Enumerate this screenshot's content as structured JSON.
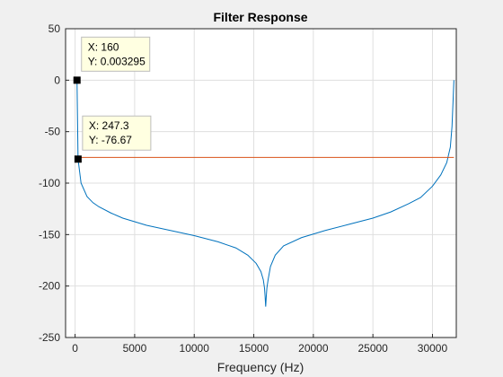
{
  "chart_data": {
    "type": "line",
    "title": "Filter Response",
    "xlabel": "Frequency (Hz)",
    "ylabel": "",
    "xlim": [
      -800,
      32000
    ],
    "ylim": [
      -250,
      50
    ],
    "xticks": [
      0,
      5000,
      10000,
      15000,
      20000,
      25000,
      30000
    ],
    "yticks": [
      50,
      0,
      -50,
      -100,
      -150,
      -200,
      -250
    ],
    "grid": true,
    "series": [
      {
        "color": "#0072bd",
        "x": [
          0,
          160,
          247.3,
          500,
          1000,
          1500,
          2000,
          3000,
          4000,
          6000,
          8000,
          10000,
          12000,
          13500,
          14500,
          15200,
          15600,
          15800,
          15900,
          15950,
          16000,
          16050,
          16100,
          16200,
          16400,
          16800,
          17500,
          19000,
          21000,
          23000,
          25000,
          26500,
          28000,
          29000,
          30000,
          30700,
          31200,
          31500,
          31640,
          31730,
          31800
        ],
        "y": [
          0,
          0.003295,
          -76.67,
          -100,
          -113,
          -119,
          -123,
          -129,
          -134,
          -141,
          -146,
          -151,
          -157,
          -163,
          -170,
          -178,
          -186,
          -194,
          -202,
          -210,
          -220,
          -210,
          -202,
          -194,
          -181,
          -170,
          -161,
          -153,
          -146,
          -140,
          -134,
          -128,
          -120,
          -114,
          -103,
          -92,
          -80,
          -65,
          -45,
          -20,
          0
        ]
      },
      {
        "color": "#d95319",
        "x": [
          0,
          31800
        ],
        "y": [
          -75,
          -75
        ]
      }
    ],
    "datatips": [
      {
        "x": 160,
        "y": 0.003295,
        "label_x": "X: 160",
        "label_y": "Y: 0.003295"
      },
      {
        "x": 247.3,
        "y": -76.67,
        "label_x": "X: 247.3",
        "label_y": "Y: -76.67"
      }
    ]
  }
}
